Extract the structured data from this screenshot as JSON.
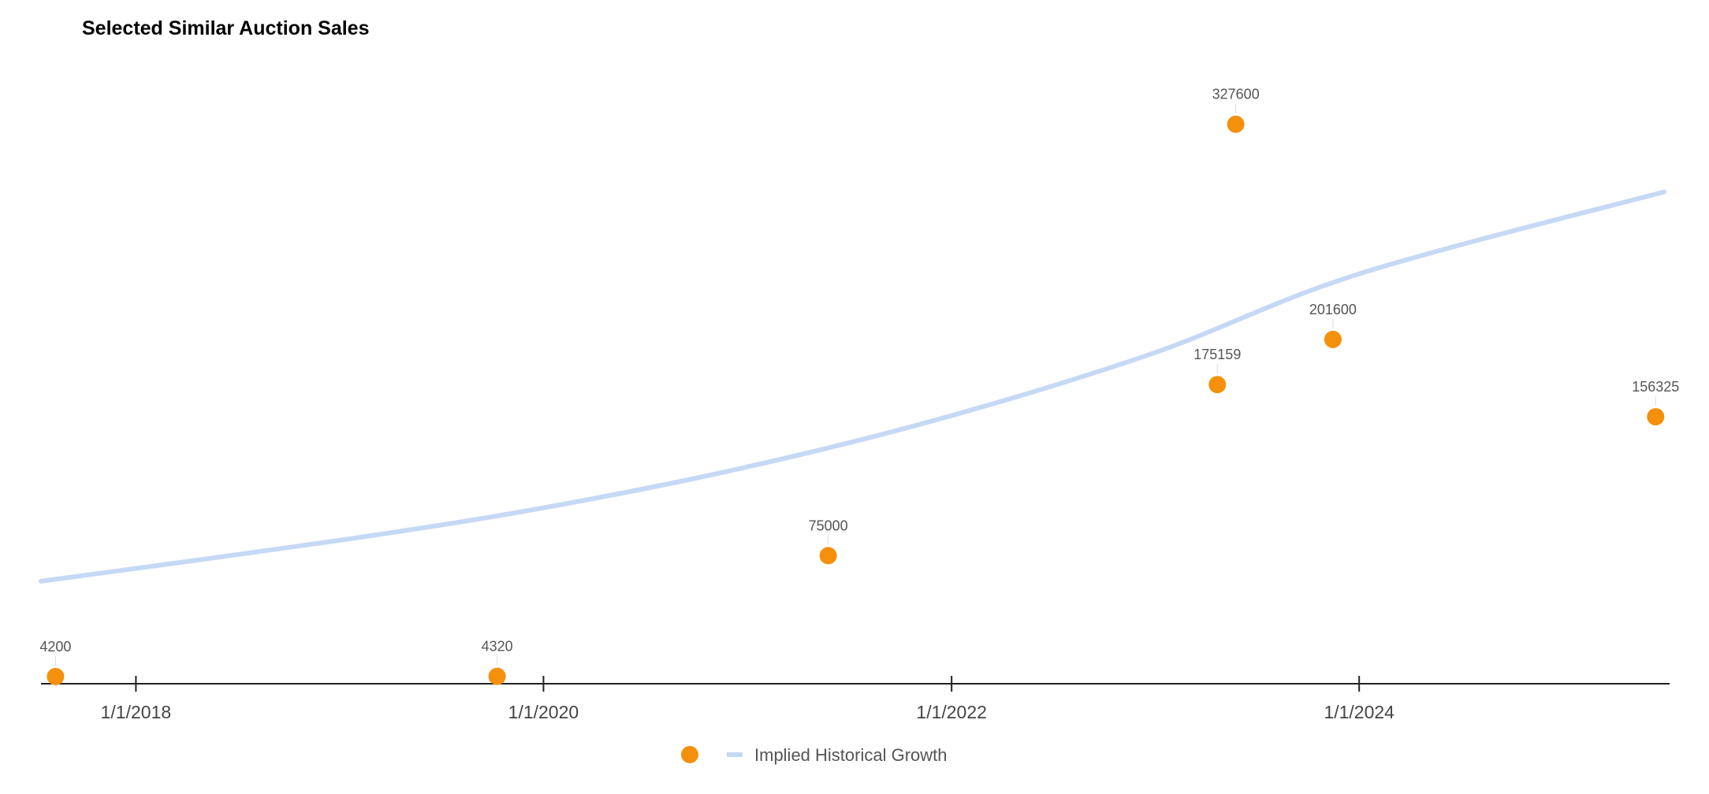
{
  "chart_data": {
    "type": "scatter",
    "title": "Selected Similar Auction Sales",
    "xlabel": "",
    "ylabel": "",
    "x_axis": {
      "type": "date",
      "range": [
        "2017-07-15",
        "2025-07-10"
      ],
      "ticks": [
        "1/1/2018",
        "1/1/2020",
        "1/1/2022",
        "1/1/2024"
      ]
    },
    "ylim": [
      0,
      345000
    ],
    "grid": false,
    "legend_position": "bottom",
    "points_color": "#F4900C",
    "trend_color": "#C5D9F5",
    "series": [
      {
        "type": "scatter",
        "points": [
          {
            "x": "2017-08-10",
            "y": 4200,
            "label": "4200"
          },
          {
            "x": "2019-10-10",
            "y": 4320,
            "label": "4320"
          },
          {
            "x": "2021-05-25",
            "y": 75000,
            "label": "75000"
          },
          {
            "x": "2023-04-22",
            "y": 175159,
            "label": "175159"
          },
          {
            "x": "2023-05-25",
            "y": 327600,
            "label": "327600"
          },
          {
            "x": "2023-11-15",
            "y": 201600,
            "label": "201600"
          },
          {
            "x": "2025-06-15",
            "y": 156325,
            "label": "156325"
          }
        ]
      },
      {
        "type": "line",
        "name": "Implied Historical Growth",
        "points": [
          {
            "x": "2017-07-15",
            "y": 60000
          },
          {
            "x": "2019-01-01",
            "y": 84000
          },
          {
            "x": "2020-01-01",
            "y": 103000
          },
          {
            "x": "2021-01-01",
            "y": 127000
          },
          {
            "x": "2022-01-01",
            "y": 157000
          },
          {
            "x": "2023-01-01",
            "y": 194000
          },
          {
            "x": "2024-01-01",
            "y": 240000
          },
          {
            "x": "2025-06-30",
            "y": 288000
          }
        ]
      }
    ]
  }
}
